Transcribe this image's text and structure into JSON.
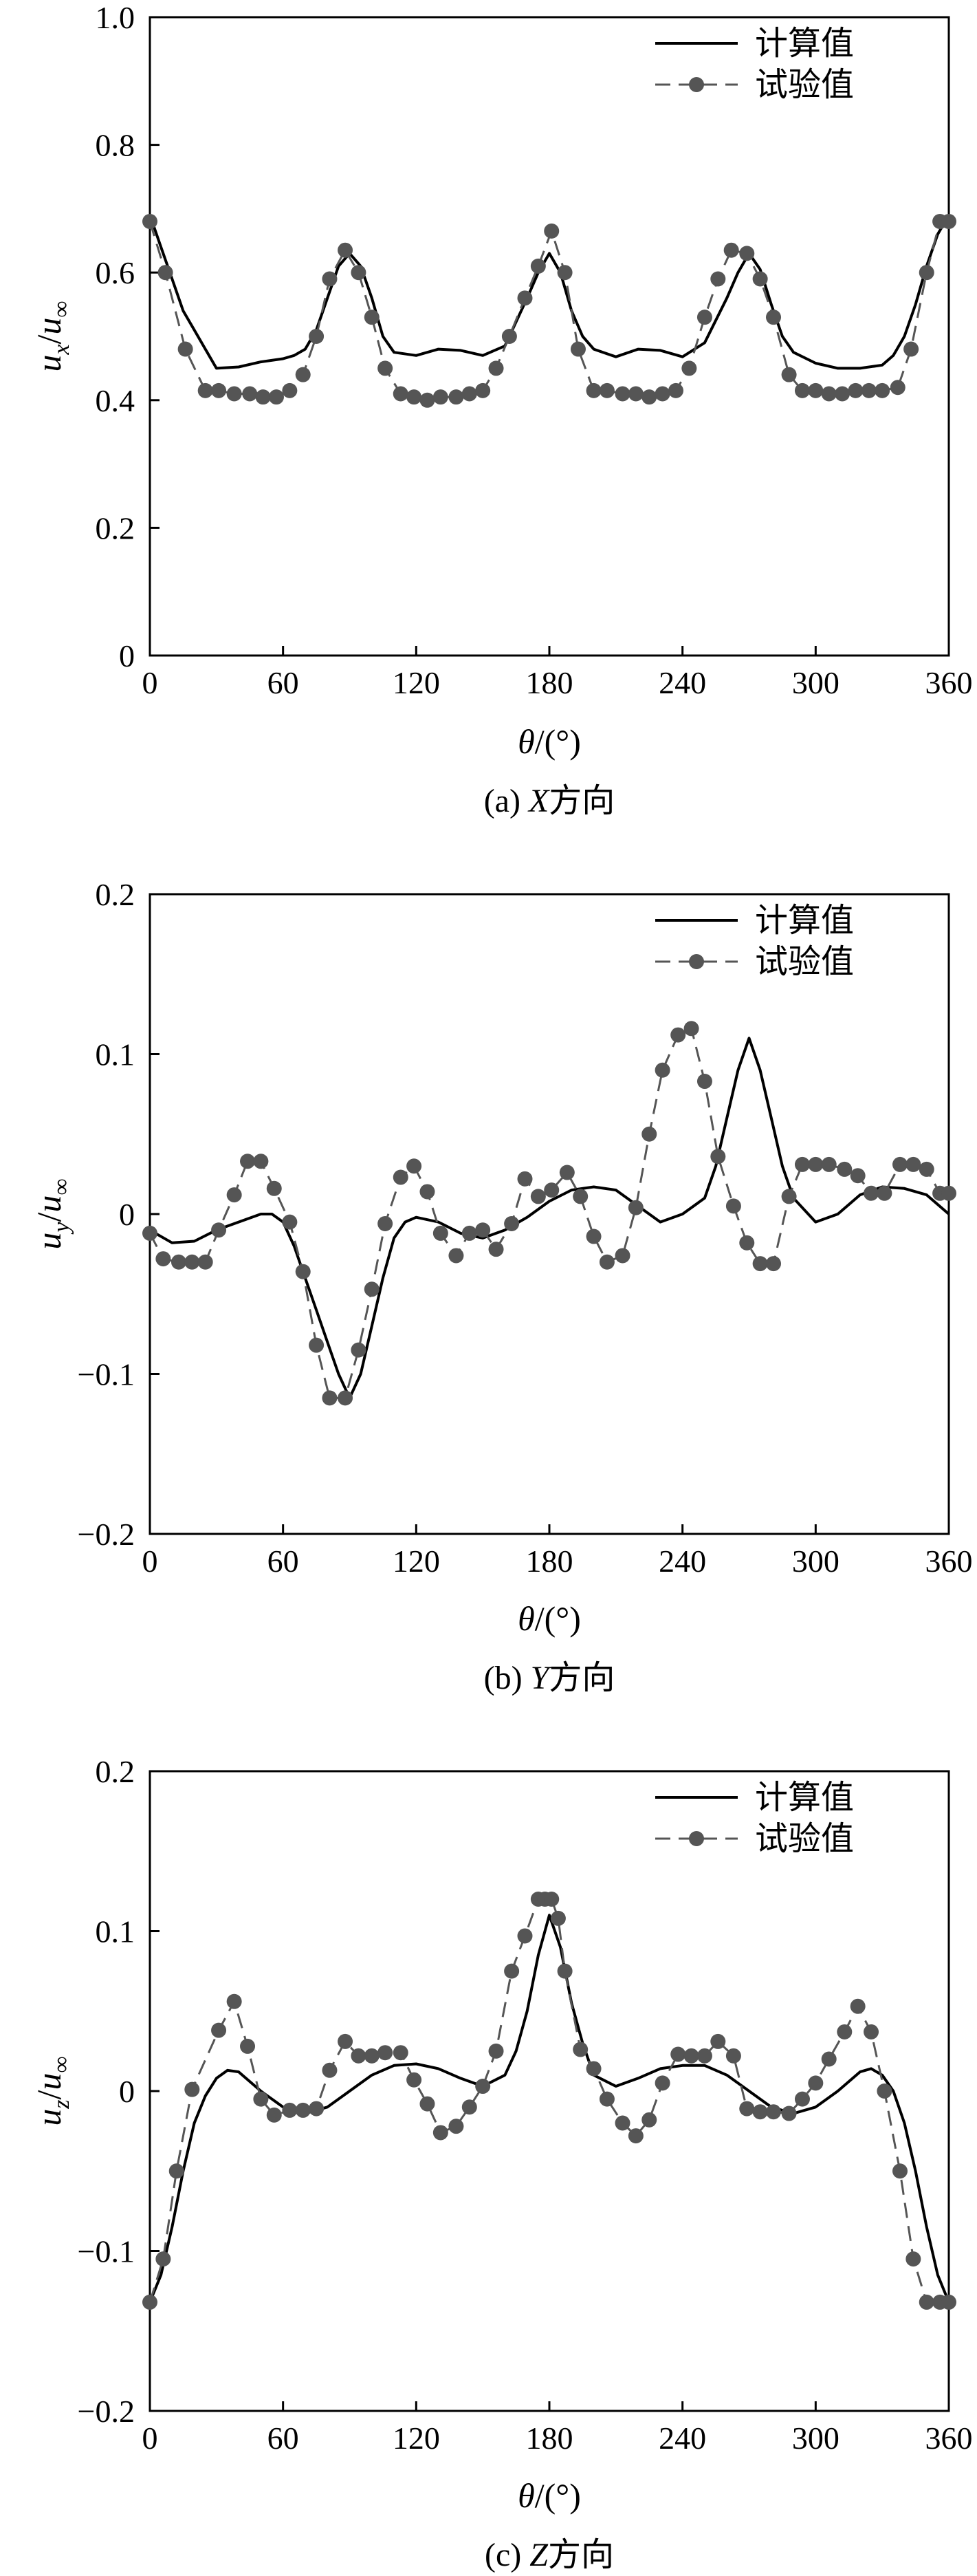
{
  "figure": {
    "legend": {
      "computed": "计算值",
      "experimental": "试验值"
    },
    "colors": {
      "computed": "#000000",
      "experimental": "#555555",
      "axes": "#000000"
    }
  },
  "chart_data": [
    {
      "type": "line",
      "caption_prefix": "(a) ",
      "caption_axis": "X",
      "caption_suffix": "方向",
      "ylabel": {
        "num": "u",
        "num_sub": "x",
        "den": "u",
        "den_sub": "∞"
      },
      "xlabel": {
        "symbol": "θ",
        "unit": "/(°)"
      },
      "xlim": [
        0,
        360
      ],
      "ylim": [
        0,
        1.0
      ],
      "xticks": [
        "0",
        "60",
        "120",
        "180",
        "240",
        "300",
        "360"
      ],
      "yticks": [
        "0",
        "0.2",
        "0.4",
        "0.6",
        "0.8",
        "1.0"
      ],
      "legend_position": "top-right",
      "series": [
        {
          "name": "计算值",
          "style": "solid",
          "x": [
            0,
            5,
            10,
            15,
            20,
            25,
            30,
            40,
            50,
            60,
            65,
            70,
            75,
            80,
            85,
            90,
            95,
            100,
            105,
            110,
            120,
            130,
            140,
            150,
            160,
            170,
            175,
            180,
            185,
            190,
            195,
            200,
            210,
            220,
            230,
            240,
            250,
            260,
            265,
            270,
            275,
            280,
            285,
            290,
            300,
            310,
            320,
            330,
            335,
            340,
            345,
            350,
            355,
            360
          ],
          "y": [
            0.69,
            0.64,
            0.59,
            0.54,
            0.51,
            0.48,
            0.45,
            0.452,
            0.46,
            0.465,
            0.47,
            0.48,
            0.51,
            0.56,
            0.61,
            0.63,
            0.61,
            0.56,
            0.5,
            0.475,
            0.47,
            0.48,
            0.478,
            0.47,
            0.485,
            0.56,
            0.6,
            0.63,
            0.6,
            0.54,
            0.5,
            0.48,
            0.468,
            0.48,
            0.478,
            0.468,
            0.49,
            0.56,
            0.6,
            0.63,
            0.605,
            0.55,
            0.5,
            0.475,
            0.458,
            0.45,
            0.45,
            0.455,
            0.47,
            0.5,
            0.55,
            0.61,
            0.66,
            0.69
          ]
        },
        {
          "name": "试验值",
          "style": "dashed",
          "x": [
            0,
            7,
            16,
            25,
            31,
            38,
            45,
            51,
            57,
            63,
            69,
            75,
            81,
            88,
            94,
            100,
            106,
            113,
            119,
            125,
            131,
            138,
            144,
            150,
            156,
            162,
            169,
            175,
            181,
            187,
            193,
            200,
            206,
            213,
            219,
            225,
            231,
            237,
            243,
            250,
            256,
            262,
            269,
            275,
            281,
            288,
            294,
            300,
            306,
            312,
            318,
            324,
            330,
            337,
            343,
            350,
            356,
            360
          ],
          "y": [
            0.68,
            0.6,
            0.48,
            0.415,
            0.415,
            0.41,
            0.41,
            0.405,
            0.405,
            0.415,
            0.44,
            0.5,
            0.59,
            0.635,
            0.6,
            0.53,
            0.45,
            0.41,
            0.405,
            0.4,
            0.405,
            0.405,
            0.41,
            0.415,
            0.45,
            0.5,
            0.56,
            0.61,
            0.665,
            0.6,
            0.48,
            0.415,
            0.415,
            0.41,
            0.41,
            0.405,
            0.41,
            0.415,
            0.45,
            0.53,
            0.59,
            0.635,
            0.63,
            0.59,
            0.53,
            0.44,
            0.415,
            0.415,
            0.41,
            0.41,
            0.415,
            0.415,
            0.415,
            0.42,
            0.48,
            0.6,
            0.68,
            0.68
          ]
        }
      ]
    },
    {
      "type": "line",
      "caption_prefix": "(b) ",
      "caption_axis": "Y",
      "caption_suffix": "方向",
      "ylabel": {
        "num": "u",
        "num_sub": "y",
        "den": "u",
        "den_sub": "∞"
      },
      "xlabel": {
        "symbol": "θ",
        "unit": "/(°)"
      },
      "xlim": [
        0,
        360
      ],
      "ylim": [
        -0.2,
        0.2
      ],
      "xticks": [
        "0",
        "60",
        "120",
        "180",
        "240",
        "300",
        "360"
      ],
      "yticks": [
        "-0.2",
        "-0.1",
        "0",
        "0.1",
        "0.2"
      ],
      "legend_position": "top-right",
      "series": [
        {
          "name": "计算值",
          "style": "solid",
          "x": [
            0,
            10,
            20,
            30,
            40,
            50,
            55,
            60,
            65,
            70,
            75,
            80,
            85,
            90,
            95,
            100,
            105,
            110,
            115,
            120,
            130,
            140,
            150,
            160,
            170,
            180,
            190,
            200,
            210,
            220,
            230,
            240,
            250,
            255,
            260,
            265,
            270,
            275,
            280,
            285,
            290,
            300,
            310,
            320,
            330,
            340,
            350,
            360
          ],
          "y": [
            -0.01,
            -0.018,
            -0.017,
            -0.01,
            -0.005,
            0.0,
            0.0,
            -0.005,
            -0.02,
            -0.04,
            -0.06,
            -0.08,
            -0.1,
            -0.115,
            -0.1,
            -0.07,
            -0.04,
            -0.015,
            -0.005,
            -0.002,
            -0.005,
            -0.012,
            -0.015,
            -0.01,
            -0.002,
            0.008,
            0.015,
            0.017,
            0.015,
            0.005,
            -0.005,
            0.0,
            0.01,
            0.03,
            0.06,
            0.09,
            0.11,
            0.09,
            0.06,
            0.03,
            0.01,
            -0.005,
            0.0,
            0.012,
            0.017,
            0.016,
            0.012,
            0.0
          ]
        },
        {
          "name": "试验值",
          "style": "dashed",
          "x": [
            0,
            6,
            13,
            19,
            25,
            31,
            38,
            44,
            50,
            56,
            63,
            69,
            75,
            81,
            88,
            94,
            100,
            106,
            113,
            119,
            125,
            131,
            138,
            144,
            150,
            156,
            163,
            169,
            175,
            181,
            188,
            194,
            200,
            206,
            213,
            219,
            225,
            231,
            238,
            244,
            250,
            256,
            263,
            269,
            275,
            281,
            288,
            294,
            300,
            306,
            313,
            319,
            325,
            331,
            338,
            344,
            350,
            356,
            360
          ],
          "y": [
            -0.012,
            -0.028,
            -0.03,
            -0.03,
            -0.03,
            -0.01,
            0.012,
            0.033,
            0.033,
            0.016,
            -0.005,
            -0.036,
            -0.082,
            -0.115,
            -0.115,
            -0.085,
            -0.047,
            -0.006,
            0.023,
            0.03,
            0.014,
            -0.012,
            -0.026,
            -0.012,
            -0.01,
            -0.022,
            -0.006,
            0.022,
            0.011,
            0.015,
            0.026,
            0.011,
            -0.014,
            -0.03,
            -0.026,
            0.004,
            0.05,
            0.09,
            0.112,
            0.116,
            0.083,
            0.036,
            0.005,
            -0.018,
            -0.031,
            -0.031,
            0.011,
            0.031,
            0.031,
            0.031,
            0.028,
            0.024,
            0.013,
            0.013,
            0.031,
            0.031,
            0.028,
            0.013,
            0.013
          ]
        }
      ]
    },
    {
      "type": "line",
      "caption_prefix": "(c) ",
      "caption_axis": "Z",
      "caption_suffix": "方向",
      "ylabel": {
        "num": "u",
        "num_sub": "z",
        "den": "u",
        "den_sub": "∞"
      },
      "xlabel": {
        "symbol": "θ",
        "unit": "/(°)"
      },
      "xlim": [
        0,
        360
      ],
      "ylim": [
        -0.2,
        0.2
      ],
      "xticks": [
        "0",
        "60",
        "120",
        "180",
        "240",
        "300",
        "360"
      ],
      "yticks": [
        "-0.2",
        "-0.1",
        "0",
        "0.1",
        "0.2"
      ],
      "legend_position": "top-right",
      "series": [
        {
          "name": "计算值",
          "style": "solid",
          "x": [
            0,
            5,
            10,
            15,
            20,
            25,
            30,
            35,
            40,
            45,
            50,
            60,
            70,
            80,
            90,
            100,
            110,
            120,
            130,
            140,
            150,
            160,
            165,
            170,
            175,
            180,
            185,
            190,
            195,
            200,
            210,
            220,
            230,
            240,
            250,
            260,
            270,
            280,
            290,
            300,
            310,
            320,
            325,
            330,
            335,
            340,
            345,
            350,
            355,
            360
          ],
          "y": [
            -0.132,
            -0.115,
            -0.085,
            -0.05,
            -0.02,
            -0.003,
            0.008,
            0.013,
            0.012,
            0.006,
            0.0,
            -0.01,
            -0.014,
            -0.01,
            0.0,
            0.01,
            0.016,
            0.017,
            0.014,
            0.008,
            0.003,
            0.01,
            0.025,
            0.05,
            0.085,
            0.11,
            0.09,
            0.055,
            0.03,
            0.01,
            0.003,
            0.008,
            0.014,
            0.016,
            0.016,
            0.01,
            0.0,
            -0.01,
            -0.014,
            -0.01,
            0.0,
            0.012,
            0.014,
            0.01,
            0.0,
            -0.02,
            -0.05,
            -0.085,
            -0.115,
            -0.132
          ]
        },
        {
          "name": "试验值",
          "style": "dashed",
          "x": [
            0,
            6,
            12,
            19,
            31,
            38,
            44,
            50,
            56,
            63,
            69,
            75,
            81,
            88,
            94,
            100,
            106,
            113,
            119,
            125,
            131,
            138,
            144,
            150,
            156,
            163,
            169,
            175,
            178,
            181,
            184,
            187,
            194,
            200,
            206,
            213,
            219,
            225,
            231,
            238,
            244,
            250,
            256,
            263,
            269,
            275,
            281,
            288,
            294,
            300,
            306,
            313,
            319,
            325,
            331,
            338,
            344,
            350,
            356,
            360
          ],
          "y": [
            -0.132,
            -0.105,
            -0.05,
            0.001,
            0.038,
            0.056,
            0.028,
            -0.005,
            -0.015,
            -0.012,
            -0.012,
            -0.011,
            0.013,
            0.031,
            0.022,
            0.022,
            0.024,
            0.024,
            0.007,
            -0.008,
            -0.026,
            -0.022,
            -0.01,
            0.003,
            0.025,
            0.075,
            0.097,
            0.12,
            0.12,
            0.12,
            0.108,
            0.075,
            0.026,
            0.014,
            -0.005,
            -0.02,
            -0.028,
            -0.018,
            0.005,
            0.023,
            0.022,
            0.022,
            0.031,
            0.022,
            -0.011,
            -0.013,
            -0.013,
            -0.014,
            -0.005,
            0.005,
            0.02,
            0.037,
            0.053,
            0.037,
            0.0,
            -0.05,
            -0.105,
            -0.132,
            -0.132,
            -0.132
          ]
        }
      ]
    }
  ]
}
